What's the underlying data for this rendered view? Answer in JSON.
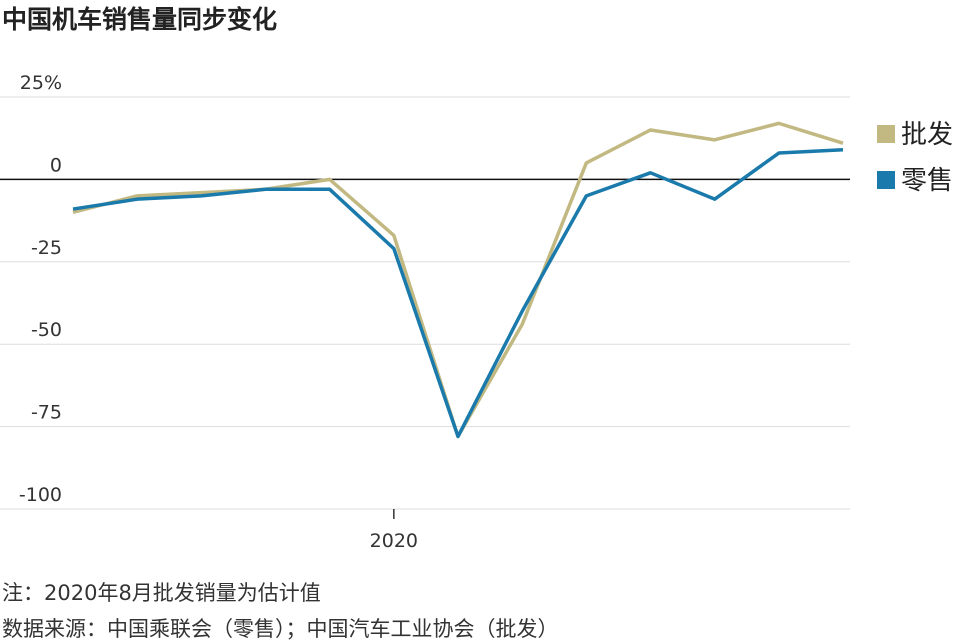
{
  "chart_data": {
    "type": "line",
    "title": "中国机车销售量同步变化",
    "categories": [
      null,
      null,
      null,
      null,
      null,
      "2020",
      null,
      null,
      null,
      null,
      null,
      null,
      null
    ],
    "series": [
      {
        "name": "批发",
        "color": "#c2b882",
        "values": [
          -10,
          -5,
          -4,
          -3,
          0,
          -17,
          -78,
          -44,
          5,
          15,
          12,
          17,
          11
        ]
      },
      {
        "name": "零售",
        "color": "#1a7aab",
        "values": [
          -9,
          -6,
          -5,
          -3,
          -3,
          -21,
          -78,
          -40,
          -5,
          2,
          -6,
          8,
          9
        ]
      }
    ],
    "ylim": [
      -100,
      25
    ],
    "yticks": [
      {
        "value": 25,
        "label": "25%"
      },
      0,
      -25,
      -50,
      -75,
      -100
    ],
    "grid": true,
    "legend": "right",
    "notes": [
      "注：2020年8月批发销量为估计值",
      "数据来源：中国乘联会（零售）；中国汽车工业协会（批发）"
    ]
  }
}
